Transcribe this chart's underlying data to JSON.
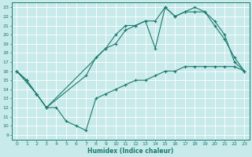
{
  "bg_color": "#c8eaea",
  "grid_color": "#ffffff",
  "line_color": "#1a7a6e",
  "xlabel": "Humidex (Indice chaleur)",
  "xlim": [
    -0.5,
    23.5
  ],
  "ylim": [
    8.5,
    23.5
  ],
  "yticks": [
    9,
    10,
    11,
    12,
    13,
    14,
    15,
    16,
    17,
    18,
    19,
    20,
    21,
    22,
    23
  ],
  "xticks": [
    0,
    1,
    2,
    3,
    4,
    5,
    6,
    7,
    8,
    9,
    10,
    11,
    12,
    13,
    14,
    15,
    16,
    17,
    18,
    19,
    20,
    21,
    22,
    23
  ],
  "line1_zigzag": {
    "x": [
      0,
      1,
      2,
      3,
      4,
      5,
      6,
      7,
      8,
      9,
      10,
      11,
      12,
      13,
      14,
      15,
      16,
      17,
      18,
      19,
      20,
      21,
      22,
      23
    ],
    "y": [
      16,
      15,
      13.5,
      12,
      12,
      10.5,
      10,
      9.5,
      13.0,
      13.5,
      14.0,
      14.5,
      15.0,
      15.0,
      15.5,
      16.0,
      16.0,
      16.5,
      16.5,
      16.5,
      16.5,
      16.5,
      16.5,
      16.0
    ]
  },
  "line2_mid": {
    "x": [
      0,
      1,
      2,
      3,
      7,
      8,
      9,
      10,
      11,
      12,
      13,
      14,
      15,
      16,
      17,
      18,
      19,
      20,
      21,
      22,
      23
    ],
    "y": [
      16,
      15,
      13.5,
      12,
      15.5,
      17.5,
      18.5,
      19.0,
      20.5,
      21.0,
      21.5,
      21.5,
      23.0,
      22.0,
      22.5,
      23.0,
      22.5,
      21.5,
      20.0,
      17.0,
      16.0
    ]
  },
  "line3_upper": {
    "x": [
      0,
      2,
      3,
      9,
      10,
      11,
      12,
      13,
      14,
      15,
      16,
      17,
      18,
      19,
      20,
      21,
      22,
      23
    ],
    "y": [
      16,
      13.5,
      12,
      18.5,
      20.0,
      21.0,
      21.0,
      21.5,
      18.5,
      23.0,
      22.0,
      22.5,
      22.5,
      22.5,
      21.0,
      19.5,
      17.5,
      16.0
    ]
  }
}
